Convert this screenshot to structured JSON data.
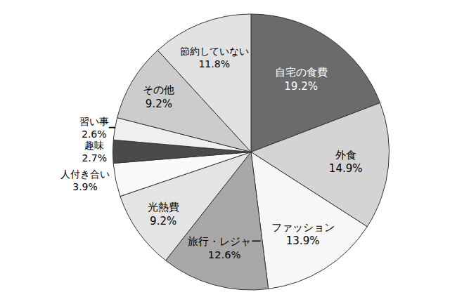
{
  "chart_data": {
    "type": "pie",
    "categories": [
      "自宅の食費",
      "外食",
      "ファッション",
      "旅行・レジャー",
      "光熱費",
      "人付き合い",
      "趣味",
      "習い事",
      "その他",
      "節約していない"
    ],
    "values": [
      19.2,
      14.9,
      13.9,
      12.6,
      9.2,
      3.9,
      2.7,
      2.6,
      9.2,
      11.8
    ],
    "value_labels": [
      "19.2%",
      "14.9%",
      "13.9%",
      "12.6%",
      "9.2%",
      "3.9%",
      "2.7%",
      "2.6%",
      "9.2%",
      "11.8%"
    ],
    "colors": [
      "#6b6b6b",
      "#d4d4d4",
      "#f7f7f7",
      "#a8a8a8",
      "#e4e4e4",
      "#fafafa",
      "#4a4a4a",
      "#efefef",
      "#cccccc",
      "#e2e2e2"
    ],
    "data_labels": true
  }
}
